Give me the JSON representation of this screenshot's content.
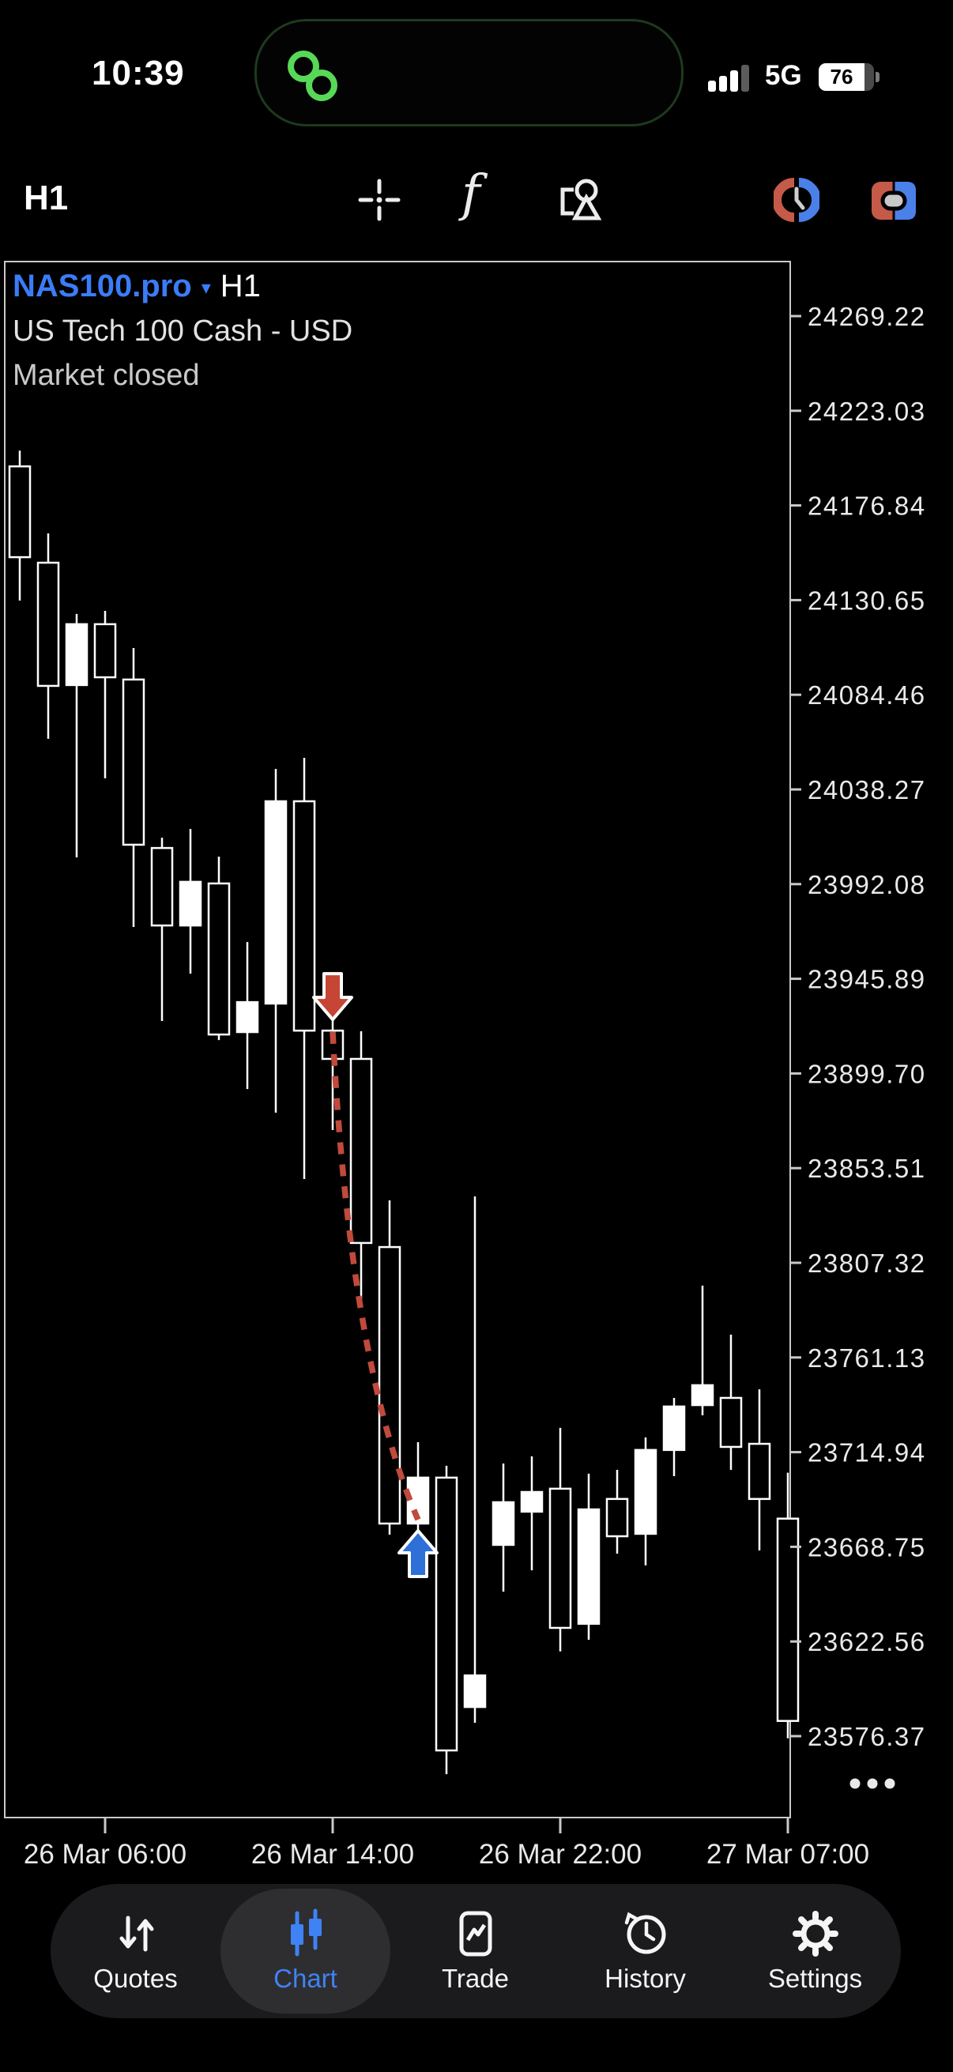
{
  "status_bar": {
    "time": "10:39",
    "network": "5G",
    "battery_percent": "76"
  },
  "toolbar": {
    "timeframe_label": "H1"
  },
  "chart": {
    "symbol": "NAS100.pro",
    "caret_icon": "▾",
    "timeframe": "H1",
    "description": "US Tech 100 Cash - USD",
    "status": "Market closed"
  },
  "chart_data": {
    "type": "candlestick",
    "title": "NAS100.pro H1",
    "price_ticks": [
      "24269.22",
      "24223.03",
      "24176.84",
      "24130.65",
      "24084.46",
      "24038.27",
      "23992.08",
      "23945.89",
      "23899.70",
      "23853.51",
      "23807.32",
      "23761.13",
      "23714.94",
      "23668.75",
      "23622.56",
      "23576.37"
    ],
    "time_ticks": [
      {
        "label": "26 Mar 06:00",
        "bar": 3
      },
      {
        "label": "26 Mar 14:00",
        "bar": 11
      },
      {
        "label": "26 Mar 22:00",
        "bar": 19
      },
      {
        "label": "27 Mar 07:00",
        "bar": 27
      }
    ],
    "candles": [
      {
        "o": 24195.9,
        "h": 24203.6,
        "l": 24130.4,
        "c": 24151.6
      },
      {
        "o": 24148.9,
        "h": 24163.2,
        "l": 24063.0,
        "c": 24088.8
      },
      {
        "o": 24089.2,
        "h": 24123.9,
        "l": 24005.1,
        "c": 24118.9
      },
      {
        "o": 24118.9,
        "h": 24125.4,
        "l": 24043.7,
        "c": 24093.0
      },
      {
        "o": 24091.9,
        "h": 24107.3,
        "l": 23971.2,
        "c": 24011.3
      },
      {
        "o": 24009.7,
        "h": 24014.7,
        "l": 23925.3,
        "c": 23971.9
      },
      {
        "o": 23971.9,
        "h": 24019.0,
        "l": 23948.4,
        "c": 23993.2
      },
      {
        "o": 23992.4,
        "h": 24005.5,
        "l": 23916.0,
        "c": 23918.7
      },
      {
        "o": 23919.9,
        "h": 23963.8,
        "l": 23892.1,
        "c": 23934.5
      },
      {
        "o": 23933.8,
        "h": 24048.3,
        "l": 23880.6,
        "c": 24032.5
      },
      {
        "o": 24032.5,
        "h": 24053.7,
        "l": 23848.2,
        "c": 23920.6
      },
      {
        "o": 23920.6,
        "h": 23948.0,
        "l": 23872.1,
        "c": 23906.8
      },
      {
        "o": 23906.8,
        "h": 23920.3,
        "l": 23789.2,
        "c": 23817.0
      },
      {
        "o": 23815.0,
        "h": 23837.8,
        "l": 23674.7,
        "c": 23680.1
      },
      {
        "o": 23680.1,
        "h": 23719.8,
        "l": 23664.3,
        "c": 23702.5
      },
      {
        "o": 23702.5,
        "h": 23708.3,
        "l": 23557.8,
        "c": 23569.4
      },
      {
        "o": 23590.6,
        "h": 23839.7,
        "l": 23582.9,
        "c": 23606.0
      },
      {
        "o": 23669.7,
        "h": 23709.4,
        "l": 23646.9,
        "c": 23690.5
      },
      {
        "o": 23685.9,
        "h": 23712.9,
        "l": 23657.3,
        "c": 23695.5
      },
      {
        "o": 23697.1,
        "h": 23726.8,
        "l": 23617.7,
        "c": 23629.2
      },
      {
        "o": 23631.2,
        "h": 23704.4,
        "l": 23623.4,
        "c": 23687.0
      },
      {
        "o": 23692.1,
        "h": 23706.3,
        "l": 23665.4,
        "c": 23673.9
      },
      {
        "o": 23675.1,
        "h": 23722.1,
        "l": 23659.7,
        "c": 23716.0
      },
      {
        "o": 23716.0,
        "h": 23741.4,
        "l": 23703.2,
        "c": 23737.2
      },
      {
        "o": 23737.9,
        "h": 23796.2,
        "l": 23732.9,
        "c": 23747.6
      },
      {
        "o": 23741.4,
        "h": 23772.3,
        "l": 23706.3,
        "c": 23717.5
      },
      {
        "o": 23719.0,
        "h": 23745.6,
        "l": 23667.0,
        "c": 23692.1
      },
      {
        "o": 23682.5,
        "h": 23704.9,
        "l": 23575.3,
        "c": 23583.8
      }
    ],
    "markers": [
      {
        "type": "sell",
        "bar": 11,
        "price": 23926.0,
        "color": "#c64534"
      },
      {
        "type": "buy",
        "bar": 14,
        "price": 23676.6,
        "color": "#2e6fd8"
      }
    ],
    "trade_line": {
      "from_bar": 11,
      "from_price": 23920.0,
      "to_bar": 14,
      "to_price": 23682.0,
      "color": "#c04a3c",
      "style": "dashed"
    },
    "layout": {
      "legend": "none",
      "grid": false,
      "axis_side_price": "right",
      "axis_side_time": "bottom"
    }
  },
  "tab_bar": {
    "active_color": "#3f82f6",
    "items": [
      {
        "label": "Quotes"
      },
      {
        "label": "Chart"
      },
      {
        "label": "Trade"
      },
      {
        "label": "History"
      },
      {
        "label": "Settings"
      }
    ]
  }
}
